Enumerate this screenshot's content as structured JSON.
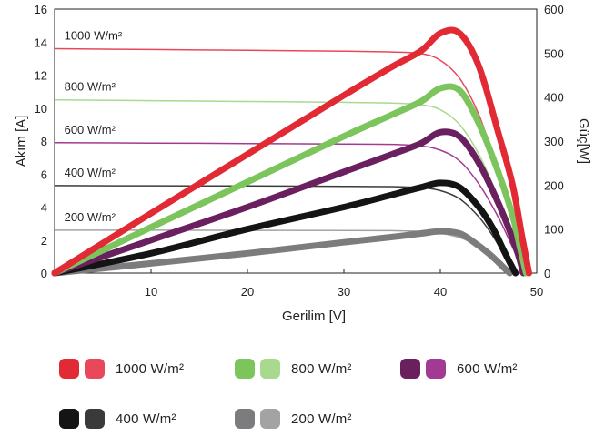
{
  "chart_data": {
    "type": "line",
    "xlabel": "Gerilim [V]",
    "ylabel_left": "Akım [A]",
    "ylabel_right": "Güç[W]",
    "xlim": [
      0,
      50
    ],
    "ylim_left": [
      0,
      16
    ],
    "ylim_right": [
      0,
      600
    ],
    "x_ticks": [
      10,
      20,
      30,
      40,
      50
    ],
    "y_left_ticks": [
      0,
      2,
      4,
      6,
      8,
      10,
      12,
      14,
      16
    ],
    "y_right_ticks": [
      0,
      100,
      200,
      300,
      400,
      500,
      600
    ],
    "series": [
      {
        "name": "1000 W/m²",
        "current_color": "#e8485a",
        "power_color": "#e12a34",
        "current": {
          "x": [
            0,
            10,
            20,
            30,
            35,
            38,
            40,
            42,
            44,
            46,
            47.5,
            48.5,
            49.2
          ],
          "y": [
            13.6,
            13.55,
            13.5,
            13.45,
            13.4,
            13.3,
            12.9,
            11.8,
            9.6,
            6.2,
            3.5,
            1.5,
            0
          ]
        },
        "power": {
          "x": [
            0,
            10,
            20,
            30,
            35,
            38,
            40,
            42,
            44,
            46,
            47.5,
            48.5,
            49.2
          ],
          "y": [
            0,
            136,
            270,
            404,
            469,
            505,
            545,
            545,
            470,
            320,
            200,
            80,
            0
          ]
        }
      },
      {
        "name": "800 W/m²",
        "current_color": "#a8d98e",
        "power_color": "#7cc45c",
        "current": {
          "x": [
            0,
            10,
            20,
            30,
            35,
            38,
            40,
            42,
            44,
            46,
            47.5,
            48.3,
            48.9
          ],
          "y": [
            10.5,
            10.45,
            10.4,
            10.35,
            10.3,
            10.2,
            9.9,
            9.0,
            7.2,
            4.6,
            2.4,
            1.0,
            0
          ]
        },
        "power": {
          "x": [
            0,
            10,
            20,
            30,
            35,
            38,
            40,
            42,
            44,
            46,
            47.5,
            48.3,
            48.9
          ],
          "y": [
            0,
            104,
            207,
            311,
            360,
            390,
            420,
            415,
            340,
            230,
            130,
            55,
            0
          ]
        }
      },
      {
        "name": "600 W/m²",
        "current_color": "#a23a93",
        "power_color": "#6a1f5f",
        "current": {
          "x": [
            0,
            10,
            20,
            30,
            35,
            38,
            40,
            42,
            44,
            46,
            47.3,
            48.1,
            48.6
          ],
          "y": [
            7.9,
            7.88,
            7.85,
            7.82,
            7.8,
            7.7,
            7.45,
            6.8,
            5.4,
            3.4,
            1.8,
            0.8,
            0
          ]
        },
        "power": {
          "x": [
            0,
            10,
            20,
            30,
            35,
            38,
            40,
            42,
            44,
            46,
            47.3,
            48.1,
            48.6
          ],
          "y": [
            0,
            75,
            150,
            230,
            270,
            295,
            320,
            310,
            250,
            160,
            90,
            40,
            0
          ]
        }
      },
      {
        "name": "400 W/m²",
        "current_color": "#3a3a3a",
        "power_color": "#141414",
        "current": {
          "x": [
            0,
            10,
            20,
            30,
            35,
            38,
            40,
            42,
            44,
            45.5,
            46.5,
            47.3,
            47.8
          ],
          "y": [
            5.3,
            5.29,
            5.28,
            5.26,
            5.24,
            5.18,
            5.0,
            4.5,
            3.4,
            2.2,
            1.2,
            0.5,
            0
          ]
        },
        "power": {
          "x": [
            0,
            10,
            20,
            30,
            35,
            38,
            40,
            42,
            44,
            45.5,
            46.5,
            47.3,
            47.8
          ],
          "y": [
            0,
            45,
            100,
            150,
            178,
            195,
            205,
            195,
            150,
            100,
            55,
            20,
            0
          ]
        }
      },
      {
        "name": "200 W/m²",
        "current_color": "#a3a3a3",
        "power_color": "#7c7c7e",
        "current": {
          "x": [
            0,
            10,
            20,
            30,
            35,
            38,
            40,
            42,
            43.5,
            45,
            46,
            46.7,
            47.2
          ],
          "y": [
            2.6,
            2.6,
            2.59,
            2.58,
            2.57,
            2.53,
            2.42,
            2.15,
            1.75,
            1.1,
            0.6,
            0.25,
            0
          ]
        },
        "power": {
          "x": [
            0,
            10,
            20,
            30,
            35,
            38,
            40,
            42,
            43.5,
            45,
            46,
            46.7,
            47.2
          ],
          "y": [
            0,
            22,
            45,
            70,
            82,
            90,
            95,
            90,
            70,
            45,
            25,
            10,
            0
          ]
        }
      }
    ],
    "annotations": [
      {
        "text": "1000 W/m²",
        "series": 0
      },
      {
        "text": "800 W/m²",
        "series": 1
      },
      {
        "text": "600 W/m²",
        "series": 2
      },
      {
        "text": "400 W/m²",
        "series": 3
      },
      {
        "text": "200 W/m²",
        "series": 4
      }
    ],
    "legend_placement": "bottom",
    "grid": false
  }
}
